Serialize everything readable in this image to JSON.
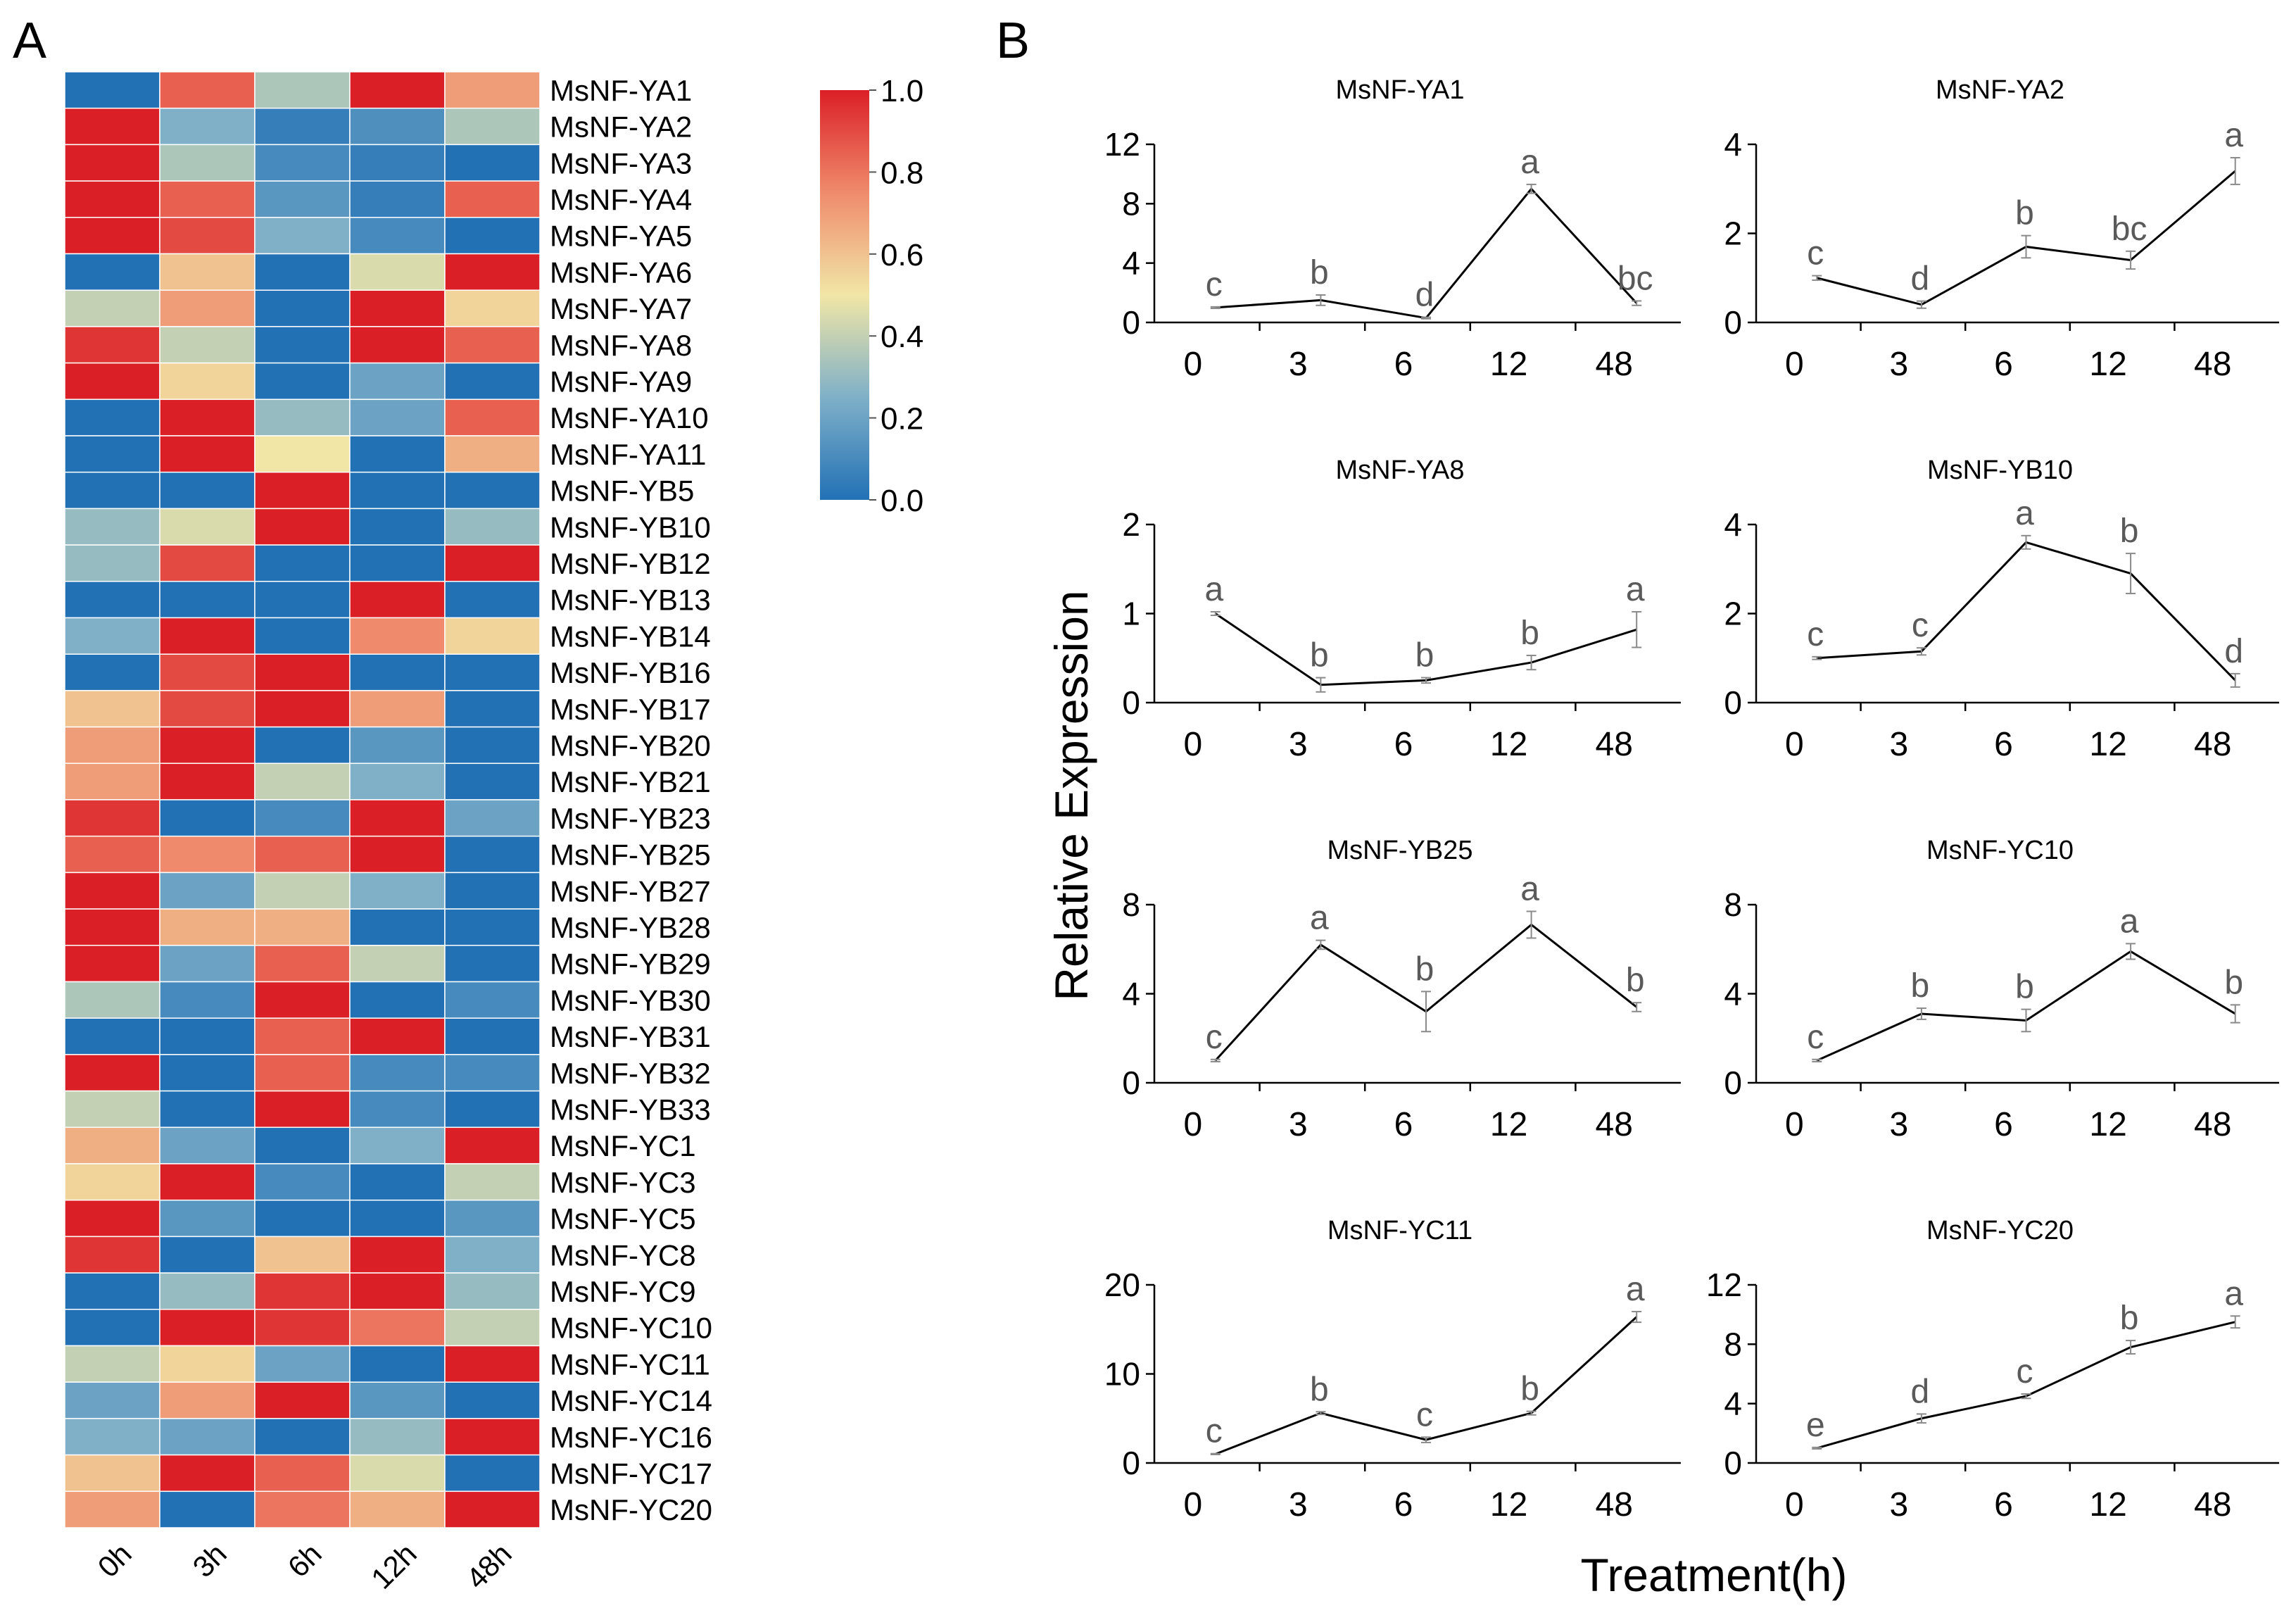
{
  "panel_labels": {
    "a": "A",
    "b": "B"
  },
  "colorbar": {
    "ticks": [
      "1.0",
      "0.8",
      "0.6",
      "0.4",
      "0.2",
      "0.0"
    ]
  },
  "colors": {
    "low": "#2271b5",
    "mid": "#f1e6a6",
    "high": "#db1f26",
    "axis": "#000000",
    "letter": "#5a5a5a",
    "errorbar": "#8a8a8a"
  },
  "chart_data": [
    {
      "type": "heatmap",
      "title": "",
      "columns": [
        "0h",
        "3h",
        "6h",
        "12h",
        "48h"
      ],
      "rows": [
        "MsNF-YA1",
        "MsNF-YA2",
        "MsNF-YA3",
        "MsNF-YA4",
        "MsNF-YA5",
        "MsNF-YA6",
        "MsNF-YA7",
        "MsNF-YA8",
        "MsNF-YA9",
        "MsNF-YA10",
        "MsNF-YA11",
        "MsNF-YB5",
        "MsNF-YB10",
        "MsNF-YB12",
        "MsNF-YB13",
        "MsNF-YB14",
        "MsNF-YB16",
        "MsNF-YB17",
        "MsNF-YB20",
        "MsNF-YB21",
        "MsNF-YB23",
        "MsNF-YB25",
        "MsNF-YB27",
        "MsNF-YB28",
        "MsNF-YB29",
        "MsNF-YB30",
        "MsNF-YB31",
        "MsNF-YB32",
        "MsNF-YB33",
        "MsNF-YC1",
        "MsNF-YC3",
        "MsNF-YC5",
        "MsNF-YC8",
        "MsNF-YC9",
        "MsNF-YC10",
        "MsNF-YC11",
        "MsNF-YC14",
        "MsNF-YC16",
        "MsNF-YC17",
        "MsNF-YC20"
      ],
      "values": [
        [
          0.0,
          0.85,
          0.35,
          1.0,
          0.7
        ],
        [
          1.0,
          0.25,
          0.05,
          0.12,
          0.35
        ],
        [
          1.0,
          0.35,
          0.1,
          0.05,
          0.0
        ],
        [
          1.0,
          0.85,
          0.15,
          0.05,
          0.85
        ],
        [
          1.0,
          0.9,
          0.25,
          0.1,
          0.0
        ],
        [
          0.0,
          0.6,
          0.0,
          0.45,
          1.0
        ],
        [
          0.4,
          0.7,
          0.0,
          1.0,
          0.55
        ],
        [
          0.95,
          0.4,
          0.0,
          1.0,
          0.85
        ],
        [
          1.0,
          0.55,
          0.0,
          0.2,
          0.0
        ],
        [
          0.0,
          1.0,
          0.3,
          0.2,
          0.85
        ],
        [
          0.0,
          1.0,
          0.5,
          0.0,
          0.65
        ],
        [
          0.0,
          0.0,
          1.0,
          0.0,
          0.0
        ],
        [
          0.3,
          0.45,
          1.0,
          0.0,
          0.3
        ],
        [
          0.3,
          0.9,
          0.0,
          0.0,
          1.0
        ],
        [
          0.0,
          0.0,
          0.0,
          1.0,
          0.0
        ],
        [
          0.25,
          1.0,
          0.0,
          0.75,
          0.55
        ],
        [
          0.0,
          0.9,
          1.0,
          0.0,
          0.0
        ],
        [
          0.6,
          0.9,
          1.0,
          0.7,
          0.0
        ],
        [
          0.7,
          1.0,
          0.0,
          0.15,
          0.0
        ],
        [
          0.7,
          1.0,
          0.4,
          0.25,
          0.0
        ],
        [
          0.95,
          0.0,
          0.1,
          1.0,
          0.2
        ],
        [
          0.85,
          0.75,
          0.85,
          1.0,
          0.0
        ],
        [
          1.0,
          0.2,
          0.4,
          0.25,
          0.0
        ],
        [
          1.0,
          0.65,
          0.65,
          0.0,
          0.0
        ],
        [
          1.0,
          0.2,
          0.85,
          0.4,
          0.0
        ],
        [
          0.35,
          0.1,
          1.0,
          0.0,
          0.1
        ],
        [
          0.0,
          0.0,
          0.85,
          1.0,
          0.0
        ],
        [
          1.0,
          0.0,
          0.85,
          0.1,
          0.1
        ],
        [
          0.4,
          0.0,
          1.0,
          0.1,
          0.0
        ],
        [
          0.65,
          0.2,
          0.0,
          0.25,
          1.0
        ],
        [
          0.55,
          1.0,
          0.1,
          0.0,
          0.4
        ],
        [
          1.0,
          0.15,
          0.0,
          0.0,
          0.15
        ],
        [
          0.95,
          0.0,
          0.6,
          1.0,
          0.25
        ],
        [
          0.0,
          0.3,
          0.95,
          1.0,
          0.3
        ],
        [
          0.0,
          1.0,
          0.95,
          0.8,
          0.4
        ],
        [
          0.4,
          0.55,
          0.2,
          0.0,
          1.0
        ],
        [
          0.2,
          0.7,
          1.0,
          0.15,
          0.0
        ],
        [
          0.25,
          0.2,
          0.0,
          0.3,
          1.0
        ],
        [
          0.6,
          1.0,
          0.85,
          0.45,
          0.0
        ],
        [
          0.7,
          0.0,
          0.8,
          0.65,
          1.0
        ]
      ],
      "colorbar_range": [
        0.0,
        1.0
      ]
    },
    {
      "type": "line",
      "ylabel": "Relative Expression",
      "xlabel": "Treatment(h)",
      "panels": [
        {
          "title": "MsNF-YA1",
          "x": [
            "0",
            "3",
            "6",
            "12",
            "48"
          ],
          "y": [
            1.0,
            1.5,
            0.3,
            9.0,
            1.3
          ],
          "err": [
            0.05,
            0.35,
            0.05,
            0.3,
            0.15
          ],
          "letters": [
            "c",
            "b",
            "d",
            "a",
            "bc"
          ],
          "yticks": [
            "0",
            "4",
            "8",
            "12"
          ],
          "ylim": [
            0,
            12
          ]
        },
        {
          "title": "MsNF-YA2",
          "x": [
            "0",
            "3",
            "6",
            "12",
            "48"
          ],
          "y": [
            1.0,
            0.4,
            1.7,
            1.4,
            3.4
          ],
          "err": [
            0.05,
            0.08,
            0.25,
            0.2,
            0.3
          ],
          "letters": [
            "c",
            "d",
            "b",
            "bc",
            "a"
          ],
          "yticks": [
            "0",
            "2",
            "4"
          ],
          "ylim": [
            0,
            4
          ]
        },
        {
          "title": "MsNF-YA8",
          "x": [
            "0",
            "3",
            "6",
            "12",
            "48"
          ],
          "y": [
            1.0,
            0.2,
            0.25,
            0.45,
            0.82
          ],
          "err": [
            0.02,
            0.08,
            0.03,
            0.08,
            0.2
          ],
          "letters": [
            "a",
            "b",
            "b",
            "b",
            "a"
          ],
          "yticks": [
            "0",
            "1",
            "2"
          ],
          "ylim": [
            0,
            2
          ]
        },
        {
          "title": "MsNF-YB10",
          "x": [
            "0",
            "3",
            "6",
            "12",
            "48"
          ],
          "y": [
            1.0,
            1.15,
            3.6,
            2.9,
            0.5
          ],
          "err": [
            0.03,
            0.08,
            0.15,
            0.45,
            0.15
          ],
          "letters": [
            "c",
            "c",
            "a",
            "b",
            "d"
          ],
          "yticks": [
            "0",
            "2",
            "4"
          ],
          "ylim": [
            0,
            4
          ]
        },
        {
          "title": "MsNF-YB25",
          "x": [
            "0",
            "3",
            "6",
            "12",
            "48"
          ],
          "y": [
            1.0,
            6.2,
            3.2,
            7.1,
            3.4
          ],
          "err": [
            0.05,
            0.2,
            0.9,
            0.6,
            0.2
          ],
          "letters": [
            "c",
            "a",
            "b",
            "a",
            "b"
          ],
          "yticks": [
            "0",
            "4",
            "8"
          ],
          "ylim": [
            0,
            8
          ]
        },
        {
          "title": "MsNF-YC10",
          "x": [
            "0",
            "3",
            "6",
            "12",
            "48"
          ],
          "y": [
            1.0,
            3.1,
            2.8,
            5.9,
            3.1
          ],
          "err": [
            0.05,
            0.25,
            0.5,
            0.35,
            0.4
          ],
          "letters": [
            "c",
            "b",
            "b",
            "a",
            "b"
          ],
          "yticks": [
            "0",
            "4",
            "8"
          ],
          "ylim": [
            0,
            8
          ]
        },
        {
          "title": "MsNF-YC11",
          "x": [
            "0",
            "3",
            "6",
            "12",
            "48"
          ],
          "y": [
            1.0,
            5.6,
            2.6,
            5.6,
            16.4
          ],
          "err": [
            0.05,
            0.15,
            0.3,
            0.2,
            0.6
          ],
          "letters": [
            "c",
            "b",
            "c",
            "b",
            "a"
          ],
          "yticks": [
            "0",
            "10",
            "20"
          ],
          "ylim": [
            0,
            20
          ]
        },
        {
          "title": "MsNF-YC20",
          "x": [
            "0",
            "3",
            "6",
            "12",
            "48"
          ],
          "y": [
            1.0,
            3.0,
            4.5,
            7.8,
            9.5
          ],
          "err": [
            0.05,
            0.3,
            0.15,
            0.45,
            0.4
          ],
          "letters": [
            "e",
            "d",
            "c",
            "b",
            "a"
          ],
          "yticks": [
            "0",
            "4",
            "8",
            "12"
          ],
          "ylim": [
            0,
            12
          ]
        }
      ]
    }
  ]
}
